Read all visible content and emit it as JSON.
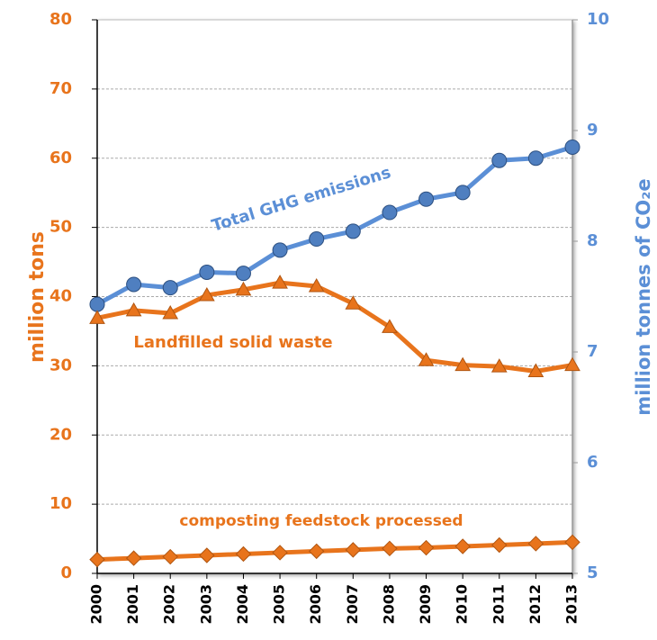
{
  "chart_data": {
    "type": "line",
    "categories": [
      "2000",
      "2001",
      "2002",
      "2003",
      "2004",
      "2005",
      "2006",
      "2007",
      "2008",
      "2009",
      "2010",
      "2011",
      "2012",
      "2013"
    ],
    "series": [
      {
        "name": "Total GHG emissions",
        "color": "#5b8fd6",
        "marker": "circle",
        "axis": "y2",
        "values": [
          7.43,
          7.61,
          7.58,
          7.72,
          7.71,
          7.92,
          8.02,
          8.09,
          8.26,
          8.38,
          8.44,
          8.73,
          8.75,
          8.85
        ]
      },
      {
        "name": "Landfilled solid waste",
        "color": "#e8741c",
        "marker": "triangle",
        "values": [
          36.9,
          38,
          37.6,
          40.2,
          41,
          42,
          41.5,
          39,
          35.6,
          30.8,
          30.1,
          29.9,
          29.2,
          30.1
        ]
      },
      {
        "name": "composting feedstock processed",
        "color": "#e8741c",
        "marker": "diamond",
        "values": [
          2.0,
          2.2,
          2.4,
          2.6,
          2.8,
          3.0,
          3.2,
          3.4,
          3.6,
          3.7,
          3.9,
          4.1,
          4.3,
          4.5
        ]
      }
    ],
    "ylabel": "million tons",
    "y2label": "million tonnes of CO₂e",
    "ylim": [
      0,
      80
    ],
    "yticks": [
      0,
      10,
      20,
      30,
      40,
      50,
      60,
      70,
      80
    ],
    "y2lim": [
      5,
      10
    ],
    "y2ticks": [
      5,
      6,
      7,
      8,
      9,
      10
    ],
    "grid": true
  }
}
